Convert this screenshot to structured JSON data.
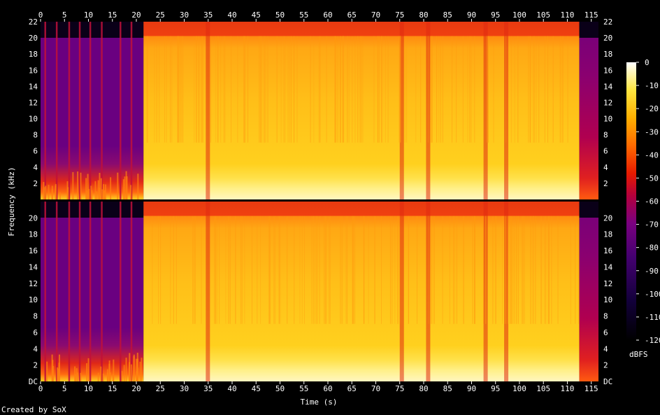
{
  "chart_data": {
    "type": "heatmap",
    "title": "",
    "xlabel": "Time (s)",
    "ylabel": "Frequency (kHz)",
    "colorbar_label": "dBFS",
    "footer": "Created by SoX",
    "x_range": [
      0,
      116.5
    ],
    "y_range_khz": [
      0,
      22
    ],
    "x_ticks": [
      0,
      5,
      10,
      15,
      20,
      25,
      30,
      35,
      40,
      45,
      50,
      55,
      60,
      65,
      70,
      75,
      80,
      85,
      90,
      95,
      100,
      105,
      110,
      115
    ],
    "y_ticks": [
      "DC",
      "2",
      "4",
      "6",
      "8",
      "10",
      "12",
      "14",
      "16",
      "18",
      "20",
      "22"
    ],
    "colorbar_range": [
      -120,
      0
    ],
    "colorbar_ticks": [
      0,
      -10,
      -20,
      -30,
      -40,
      -50,
      -60,
      -70,
      -80,
      -90,
      -100,
      -110,
      -120
    ],
    "channels": 2,
    "grid": false,
    "segments": [
      {
        "start": 0,
        "end": 21.5,
        "description_level_low_db": -85,
        "cutoff_khz": 20
      },
      {
        "start": 21.5,
        "end": 112.5,
        "level_db": -30,
        "cutoff_khz": 20
      },
      {
        "start": 112.5,
        "end": 116.5,
        "level_db": -80,
        "cutoff_khz": 20
      }
    ],
    "dark_stripes_s": [
      0.8,
      3.2,
      5.8,
      8.0,
      10.2,
      12.6,
      16.5,
      18.8,
      34.5,
      75.0,
      80.5,
      92.5,
      96.8
    ],
    "colors": {
      "background": "#000000",
      "text": "#ffffff"
    }
  }
}
